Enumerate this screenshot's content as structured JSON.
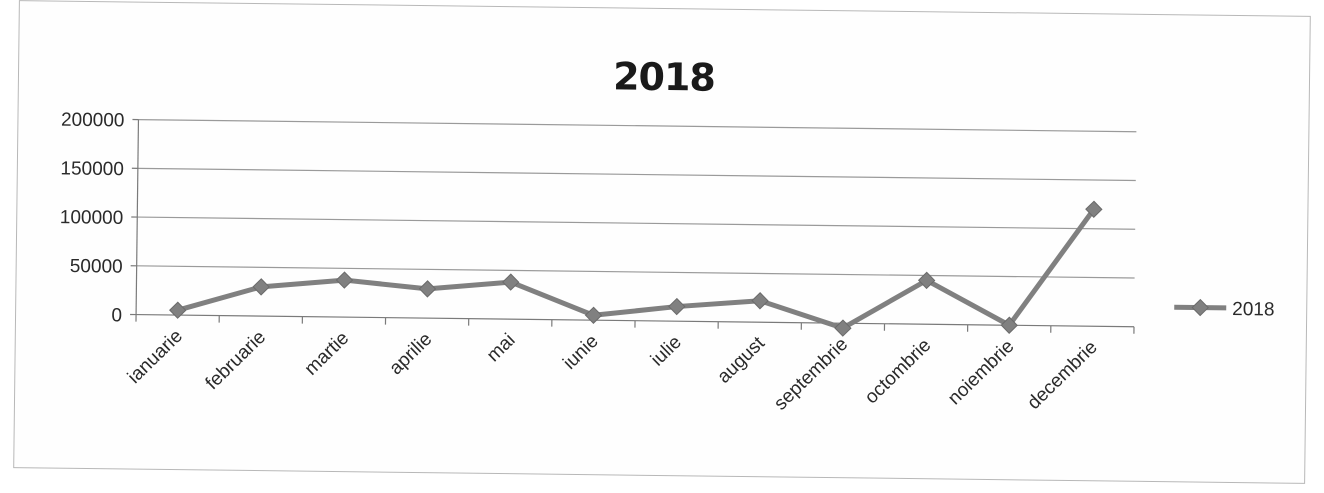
{
  "chart_data": {
    "type": "line",
    "title": "2018",
    "xlabel": "",
    "ylabel": "",
    "categories": [
      "ianuarie",
      "februarie",
      "martie",
      "aprilie",
      "mai",
      "iunie",
      "iulie",
      "august",
      "septembrie",
      "octombrie",
      "noiembrie",
      "decembrie"
    ],
    "series": [
      {
        "name": "2018",
        "values": [
          5000,
          30000,
          38000,
          30000,
          38000,
          5000,
          15000,
          22000,
          -5000,
          45000,
          0,
          120000
        ],
        "color": "#808080"
      }
    ],
    "ylim": [
      0,
      200000
    ],
    "yticks": [
      "0",
      "50000",
      "100000",
      "150000",
      "200000"
    ],
    "grid": true,
    "legend_position": "right"
  }
}
